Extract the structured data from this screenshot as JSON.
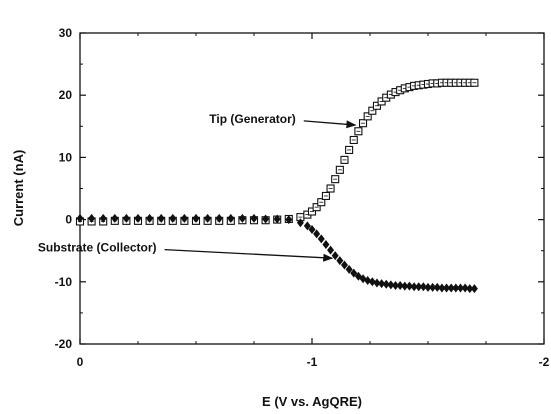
{
  "chart_data": {
    "type": "scatter",
    "xlabel": "E (V vs. AgQRE)",
    "ylabel": "Current (nA)",
    "xlim": [
      0,
      -2
    ],
    "ylim": [
      -20,
      30
    ],
    "x_ticks": [
      0,
      -1,
      -2
    ],
    "x_tick_labels": [
      "0",
      "-1",
      "-2"
    ],
    "y_ticks": [
      -20,
      -10,
      0,
      10,
      20,
      30
    ],
    "y_tick_labels": [
      "-20",
      "-10",
      "0",
      "10",
      "20",
      "30"
    ],
    "grid": false,
    "series": [
      {
        "marker": "open-square",
        "color": "#111111",
        "x": [
          0,
          -0.05,
          -0.1,
          -0.15,
          -0.2,
          -0.25,
          -0.3,
          -0.35,
          -0.4,
          -0.45,
          -0.5,
          -0.55,
          -0.6,
          -0.65,
          -0.7,
          -0.75,
          -0.8,
          -0.85,
          -0.9,
          -0.95,
          -0.98,
          -1.0,
          -1.02,
          -1.04,
          -1.06,
          -1.08,
          -1.1,
          -1.12,
          -1.14,
          -1.16,
          -1.18,
          -1.2,
          -1.22,
          -1.24,
          -1.26,
          -1.28,
          -1.3,
          -1.32,
          -1.34,
          -1.36,
          -1.38,
          -1.4,
          -1.42,
          -1.44,
          -1.46,
          -1.48,
          -1.5,
          -1.52,
          -1.54,
          -1.56,
          -1.58,
          -1.6,
          -1.62,
          -1.64,
          -1.66,
          -1.68,
          -1.7
        ],
        "y": [
          -0.3,
          -0.3,
          -0.3,
          -0.2,
          -0.2,
          -0.2,
          -0.2,
          -0.2,
          -0.2,
          -0.2,
          -0.2,
          -0.2,
          -0.2,
          -0.2,
          -0.1,
          -0.1,
          -0.1,
          0.0,
          0.1,
          0.4,
          0.8,
          1.3,
          2.0,
          2.8,
          3.8,
          5.0,
          6.5,
          8.0,
          9.6,
          11.2,
          12.8,
          14.2,
          15.5,
          16.6,
          17.5,
          18.3,
          19.0,
          19.6,
          20.1,
          20.5,
          20.8,
          21.1,
          21.3,
          21.5,
          21.6,
          21.7,
          21.8,
          21.9,
          21.9,
          22.0,
          22.0,
          22.0,
          22.0,
          22.0,
          22.0,
          22.0,
          22.0
        ]
      },
      {
        "marker": "filled-diamond",
        "color": "#111111",
        "x": [
          0,
          -0.05,
          -0.1,
          -0.15,
          -0.2,
          -0.25,
          -0.3,
          -0.35,
          -0.4,
          -0.45,
          -0.5,
          -0.55,
          -0.6,
          -0.65,
          -0.7,
          -0.75,
          -0.8,
          -0.85,
          -0.9,
          -0.95,
          -0.98,
          -1.0,
          -1.02,
          -1.04,
          -1.06,
          -1.08,
          -1.1,
          -1.12,
          -1.14,
          -1.16,
          -1.18,
          -1.2,
          -1.22,
          -1.24,
          -1.26,
          -1.28,
          -1.3,
          -1.32,
          -1.34,
          -1.36,
          -1.38,
          -1.4,
          -1.42,
          -1.44,
          -1.46,
          -1.48,
          -1.5,
          -1.52,
          -1.54,
          -1.56,
          -1.58,
          -1.6,
          -1.62,
          -1.64,
          -1.66,
          -1.68,
          -1.7
        ],
        "y": [
          0.2,
          0.2,
          0.2,
          0.2,
          0.2,
          0.2,
          0.2,
          0.2,
          0.2,
          0.2,
          0.2,
          0.2,
          0.2,
          0.2,
          0.2,
          0.2,
          0.1,
          0.1,
          0.0,
          -0.5,
          -1.0,
          -1.6,
          -2.3,
          -3.1,
          -4.0,
          -4.9,
          -5.8,
          -6.6,
          -7.3,
          -8.0,
          -8.6,
          -9.1,
          -9.5,
          -9.8,
          -10.0,
          -10.2,
          -10.3,
          -10.4,
          -10.5,
          -10.6,
          -10.6,
          -10.7,
          -10.7,
          -10.8,
          -10.8,
          -10.8,
          -10.9,
          -10.9,
          -10.9,
          -11.0,
          -11.0,
          -11.0,
          -11.0,
          -11.0,
          -11.0,
          -11.1,
          -11.1
        ]
      }
    ],
    "annotations": [
      {
        "text": "Tip (Generator)",
        "x": -0.93,
        "y": 16.2,
        "arrow_to_x": -1.2,
        "arrow_to_y": 15.2
      },
      {
        "text": "Substrate (Collector)",
        "x": -0.33,
        "y": -4.5,
        "arrow_to_x": -1.1,
        "arrow_to_y": -6.2
      }
    ]
  }
}
